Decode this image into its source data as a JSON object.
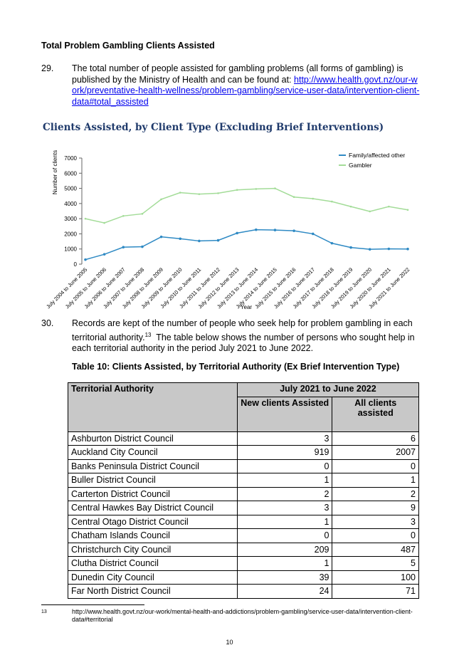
{
  "heading": "Total Problem Gambling Clients Assisted",
  "para29": {
    "number": "29.",
    "text": "The total number of people assisted for gambling problems (all forms of gambling) is published by the Ministry of Health and can be found at:",
    "link": "http://www.health.govt.nz/our-work/preventative-health-wellness/problem-gambling/service-user-data/intervention-client-data#total_assisted"
  },
  "chart_data": {
    "type": "line",
    "title": "Clients Assisted, by Client Type (Excluding Brief Interventions)",
    "y_label": "Number of clients",
    "x_label": "Year",
    "categories": [
      "July 2004 to June 2005",
      "July 2005 to June 2006",
      "July 2006 to June 2007",
      "July 2007 to June 2008",
      "July 2008 to June 2009",
      "July 2009 to June 2010",
      "July 2010 to June 2011",
      "July 2011 to June 2012",
      "July 2012 to June 2013",
      "July 2013 to June 2014",
      "July 2014 to June 2015",
      "July 2015 to June 2016",
      "July 2016 to June 2017",
      "July 2017 to June 2018",
      "July 2018 to June 2019",
      "July 2019 to June 2020",
      "July 2020 to June 2021",
      "July 2021 to June 2022"
    ],
    "series": [
      {
        "name": "Family/affected other",
        "color": "#2f8ac4",
        "values": [
          300,
          650,
          1120,
          1150,
          1800,
          1680,
          1530,
          1570,
          2050,
          2270,
          2250,
          2200,
          2000,
          1380,
          1100,
          980,
          1010,
          1000
        ]
      },
      {
        "name": "Gambler",
        "color": "#a3dc98",
        "values": [
          3000,
          2720,
          3180,
          3320,
          4280,
          4720,
          4620,
          4680,
          4900,
          4960,
          5000,
          4430,
          4320,
          4130,
          3800,
          3480,
          3800,
          3580
        ]
      }
    ],
    "ylim": [
      0,
      7000
    ],
    "yticks": [
      0,
      1000,
      2000,
      3000,
      4000,
      5000,
      6000,
      7000
    ],
    "legend": "top-right"
  },
  "para30": {
    "number": "30.",
    "text_before": "Records are kept of the number of people who seek help for problem gambling in each territorial authority.",
    "footnote_ref": "13",
    "text_after": "  The table below shows the number of persons who sought help in each territorial authority in the period July 2021 to June 2022."
  },
  "table": {
    "title": "Table 10:  Clients Assisted, by Territorial Authority (Ex Brief Intervention Type)",
    "header": [
      "Territorial Authority",
      "July 2021 to June 2022"
    ],
    "subheader": [
      "New clients Assisted",
      "All clients assisted"
    ],
    "rows": [
      [
        "Ashburton District Council",
        3,
        6
      ],
      [
        "Auckland City Council",
        919,
        2007
      ],
      [
        "Banks Peninsula District Council",
        0,
        0
      ],
      [
        "Buller District Council",
        1,
        1
      ],
      [
        "Carterton District Council",
        2,
        2
      ],
      [
        "Central Hawkes Bay District Council",
        3,
        9
      ],
      [
        "Central Otago District Council",
        1,
        3
      ],
      [
        "Chatham Islands Council",
        0,
        0
      ],
      [
        "Christchurch City Council",
        209,
        487
      ],
      [
        "Clutha District Council",
        1,
        5
      ],
      [
        "Dunedin City Council",
        39,
        100
      ],
      [
        "Far North District Council",
        24,
        71
      ]
    ]
  },
  "footnote": {
    "number": "13",
    "text": "http://www.health.govt.nz/our-work/mental-health-and-addictions/problem-gambling/service-user-data/intervention-client-data#territorial"
  },
  "page_number": "10"
}
